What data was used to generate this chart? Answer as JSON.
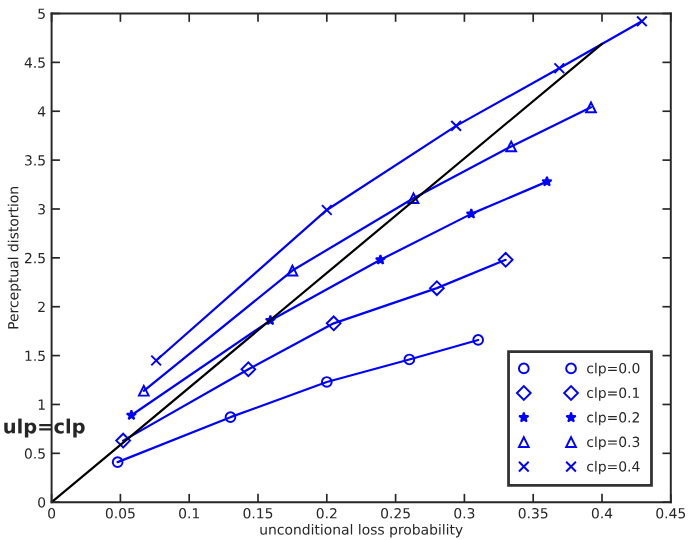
{
  "chart_data": {
    "type": "line",
    "xlabel": "unconditional loss probability",
    "ylabel": "Perceptual distortion",
    "xlim": [
      0,
      0.45
    ],
    "ylim": [
      0,
      5
    ],
    "xticks": [
      0,
      0.05,
      0.1,
      0.15,
      0.2,
      0.25,
      0.3,
      0.35,
      0.4,
      0.45
    ],
    "yticks": [
      0,
      0.5,
      1,
      1.5,
      2,
      2.5,
      3,
      3.5,
      4,
      4.5,
      5
    ],
    "grid": false,
    "legend": "bottom right",
    "annotations": [
      "ulp=clp"
    ],
    "series": [
      {
        "name": "clp=0.0",
        "color": "#0000ff",
        "marker": "circle",
        "x": [
          0.048,
          0.13,
          0.2,
          0.26,
          0.31
        ],
        "values": [
          0.41,
          0.87,
          1.23,
          1.46,
          1.66
        ]
      },
      {
        "name": "clp=0.1",
        "color": "#0000ff",
        "marker": "diamond",
        "x": [
          0.052,
          0.143,
          0.205,
          0.28,
          0.33
        ],
        "values": [
          0.63,
          1.36,
          1.83,
          2.19,
          2.48
        ]
      },
      {
        "name": "clp=0.2",
        "color": "#0000ff",
        "marker": "star",
        "x": [
          0.058,
          0.159,
          0.239,
          0.305,
          0.36
        ],
        "values": [
          0.89,
          1.86,
          2.48,
          2.95,
          3.28
        ]
      },
      {
        "name": "clp=0.3",
        "color": "#0000ff",
        "marker": "triangle",
        "x": [
          0.067,
          0.175,
          0.263,
          0.334,
          0.392
        ],
        "values": [
          1.14,
          2.37,
          3.11,
          3.64,
          4.04
        ]
      },
      {
        "name": "clp=0.4",
        "color": "#0000ff",
        "marker": "cross",
        "x": [
          0.076,
          0.2,
          0.294,
          0.369,
          0.429
        ],
        "values": [
          1.45,
          2.99,
          3.85,
          4.44,
          4.92
        ]
      },
      {
        "color": "#000000",
        "marker": "none",
        "x": [
          0,
          0.4
        ],
        "values": [
          0,
          4.69
        ]
      }
    ]
  }
}
